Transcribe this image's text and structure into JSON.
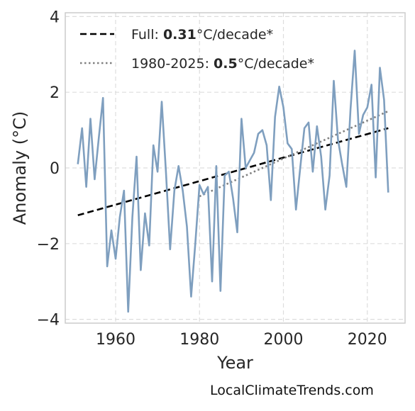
{
  "credit": "LocalClimateTrends.com",
  "chart_data": {
    "type": "line",
    "xlabel": "Year",
    "ylabel": "Anomaly (°C)",
    "xlim": [
      1948,
      2029
    ],
    "ylim": [
      -4.1,
      4.1
    ],
    "x_ticks": [
      1960,
      1980,
      2000,
      2020
    ],
    "y_ticks": [
      -4,
      -2,
      0,
      2,
      4
    ],
    "y_tick_labels": [
      "−4",
      "−2",
      "0",
      "2",
      "4"
    ],
    "grid": true,
    "legend_position": "top-left",
    "colors": {
      "series": "#7f9fbf",
      "full_trend": "#000000",
      "recent_trend": "#808080"
    },
    "series": [
      {
        "x": [
          1951,
          1952,
          1953,
          1954,
          1955,
          1956,
          1957,
          1958,
          1959,
          1960,
          1961,
          1962,
          1963,
          1964,
          1965,
          1966,
          1967,
          1968,
          1969,
          1970,
          1971,
          1972,
          1973,
          1974,
          1975,
          1976,
          1977,
          1978,
          1979,
          1980,
          1981,
          1982,
          1983,
          1984,
          1985,
          1986,
          1987,
          1988,
          1989,
          1990,
          1991,
          1992,
          1993,
          1994,
          1995,
          1996,
          1997,
          1998,
          1999,
          2000,
          2001,
          2002,
          2003,
          2004,
          2005,
          2006,
          2007,
          2008,
          2009,
          2010,
          2011,
          2012,
          2013,
          2014,
          2015,
          2016,
          2017,
          2018,
          2019,
          2020,
          2021,
          2022,
          2023,
          2024,
          2025
        ],
        "values": [
          0.1,
          1.05,
          -0.5,
          1.3,
          -0.3,
          0.8,
          1.85,
          -2.6,
          -1.65,
          -2.4,
          -1.3,
          -0.6,
          -3.8,
          -1.3,
          0.3,
          -2.7,
          -1.2,
          -2.05,
          0.6,
          -0.1,
          1.75,
          -0.1,
          -2.15,
          -0.6,
          0.05,
          -0.6,
          -1.55,
          -3.4,
          -2.0,
          -0.45,
          -0.7,
          -0.5,
          -3.0,
          0.05,
          -3.25,
          -0.2,
          -0.1,
          -0.8,
          -1.7,
          1.3,
          0.0,
          0.2,
          0.4,
          0.9,
          1.0,
          0.6,
          -0.85,
          1.35,
          2.15,
          1.6,
          0.65,
          0.5,
          -1.1,
          0.0,
          1.05,
          1.2,
          -0.1,
          1.1,
          0.3,
          -1.1,
          -0.2,
          2.3,
          0.75,
          0.1,
          -0.5,
          1.55,
          3.1,
          0.9,
          1.4,
          1.6,
          2.2,
          -0.25,
          2.65,
          1.8,
          -0.65
        ]
      }
    ],
    "trend_lines": [
      {
        "name": "Full",
        "value_label": "0.31",
        "unit_label": "°C/decade*",
        "x": [
          1951,
          2025
        ],
        "y": [
          -1.25,
          1.05
        ],
        "style": "dashed"
      },
      {
        "name": "1980-2025",
        "value_label": "0.5",
        "unit_label": "°C/decade*",
        "x": [
          1980,
          2025
        ],
        "y": [
          -0.75,
          1.5
        ],
        "style": "dotted"
      }
    ]
  }
}
